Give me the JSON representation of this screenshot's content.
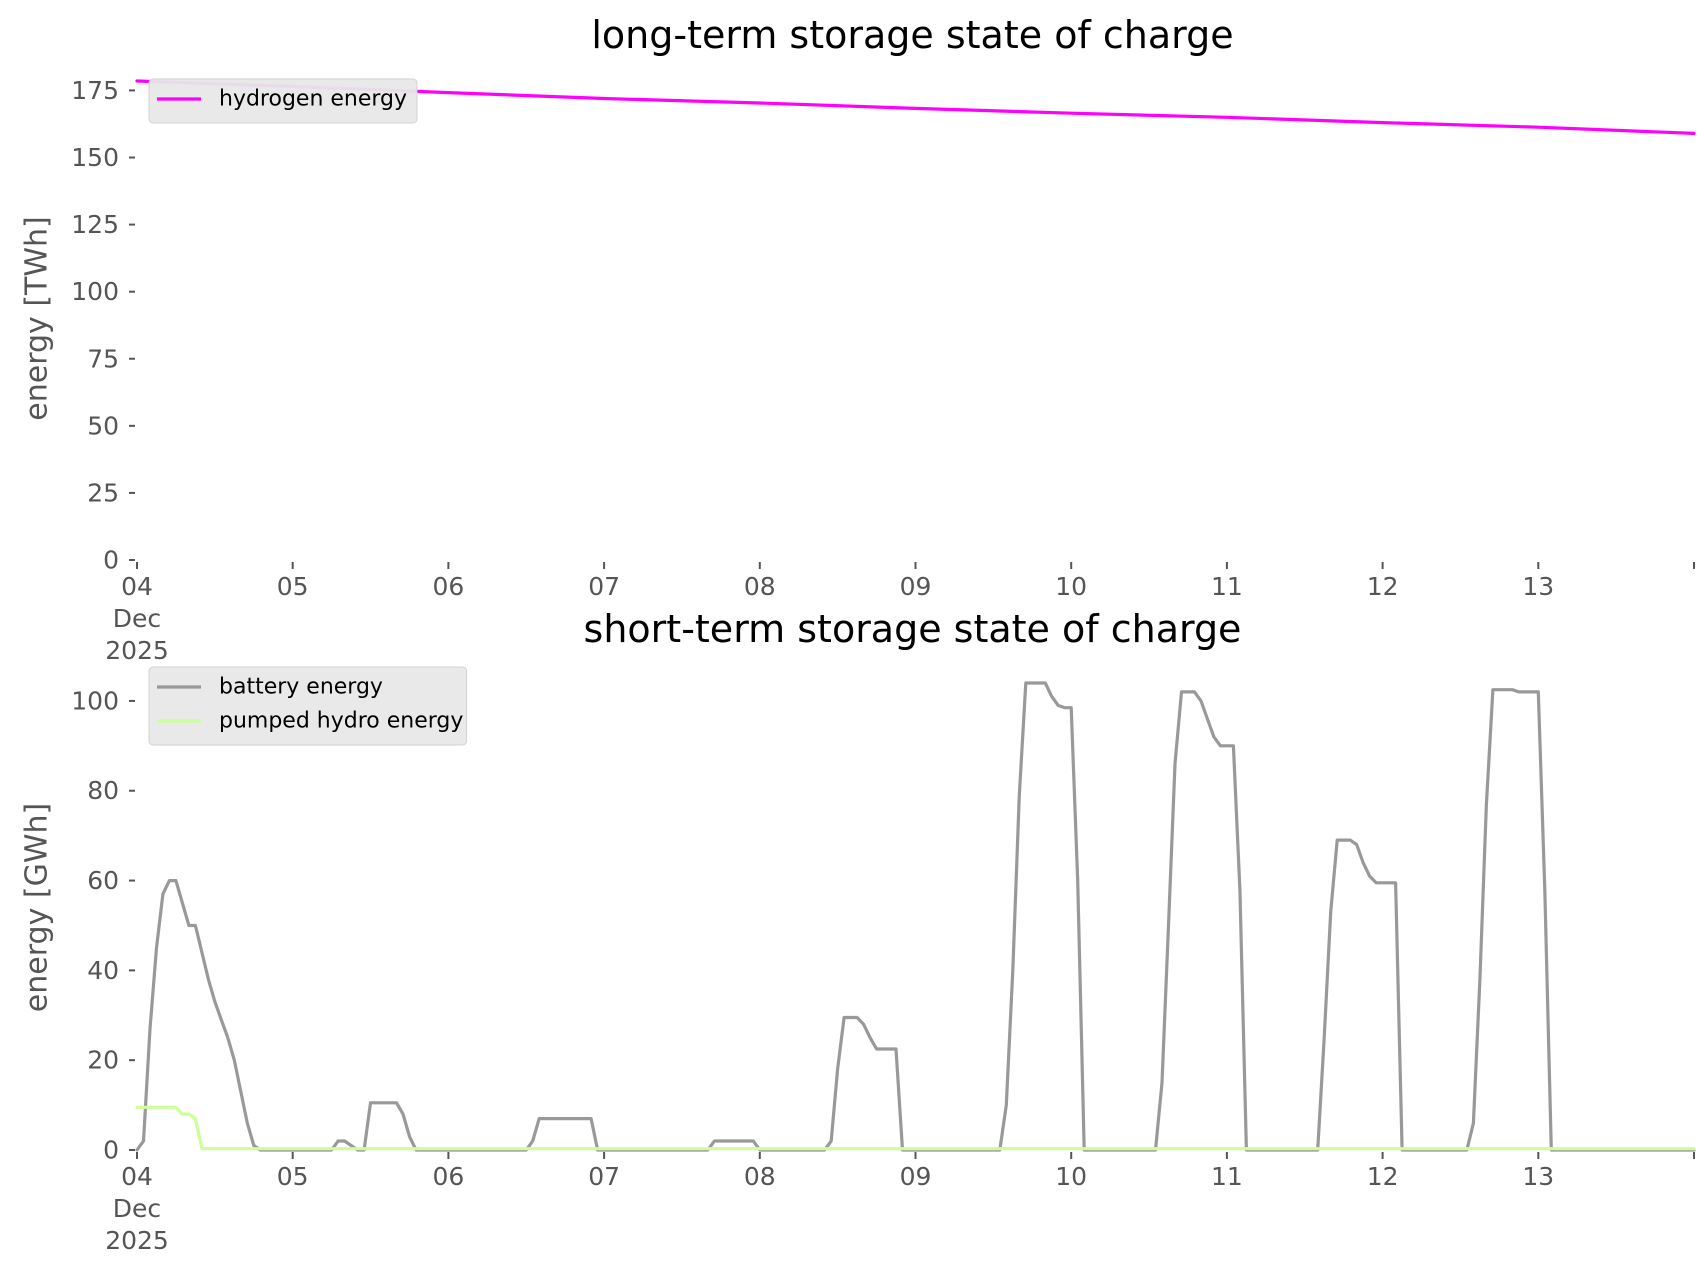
{
  "chart_data": [
    {
      "type": "line",
      "title": "long-term storage state of charge",
      "xlabel": "",
      "ylabel": "energy [TWh]",
      "ylim": [
        0,
        180
      ],
      "xlim": [
        "2025-12-04",
        "2025-12-14"
      ],
      "grid": false,
      "legend": "upper-left",
      "yticks": [
        "0",
        "25",
        "50",
        "75",
        "100",
        "125",
        "150",
        "175"
      ],
      "xticks": [
        {
          "date": "2025-12-04",
          "lines": [
            "04",
            "Dec",
            "2025"
          ]
        },
        {
          "date": "2025-12-05",
          "lines": [
            "05"
          ]
        },
        {
          "date": "2025-12-06",
          "lines": [
            "06"
          ]
        },
        {
          "date": "2025-12-07",
          "lines": [
            "07"
          ]
        },
        {
          "date": "2025-12-08",
          "lines": [
            "08"
          ]
        },
        {
          "date": "2025-12-09",
          "lines": [
            "09"
          ]
        },
        {
          "date": "2025-12-10",
          "lines": [
            "10"
          ]
        },
        {
          "date": "2025-12-11",
          "lines": [
            "11"
          ]
        },
        {
          "date": "2025-12-12",
          "lines": [
            "12"
          ]
        },
        {
          "date": "2025-12-13",
          "lines": [
            "13"
          ]
        }
      ],
      "series": [
        {
          "name": "hydrogen energy",
          "color": "#ff00ff",
          "points": [
            [
              "2025-12-04 00:00",
              178.5
            ],
            [
              "2025-12-05 00:00",
              176.5
            ],
            [
              "2025-12-06 00:00",
              174.2
            ],
            [
              "2025-12-07 00:00",
              172.0
            ],
            [
              "2025-12-08 00:00",
              170.3
            ],
            [
              "2025-12-09 00:00",
              168.3
            ],
            [
              "2025-12-10 00:00",
              166.5
            ],
            [
              "2025-12-11 00:00",
              165.0
            ],
            [
              "2025-12-12 00:00",
              163.0
            ],
            [
              "2025-12-13 00:00",
              161.3
            ],
            [
              "2025-12-14 00:00",
              159.0
            ]
          ]
        }
      ]
    },
    {
      "type": "line",
      "title": "short-term storage state of charge",
      "xlabel": "",
      "ylabel": "energy [GWh]",
      "ylim": [
        0,
        108
      ],
      "xlim": [
        "2025-12-04",
        "2025-12-14"
      ],
      "grid": false,
      "legend": "upper-left",
      "yticks": [
        "0",
        "20",
        "40",
        "60",
        "80",
        "100"
      ],
      "xticks": [
        {
          "date": "2025-12-04",
          "lines": [
            "04",
            "Dec",
            "2025"
          ]
        },
        {
          "date": "2025-12-05",
          "lines": [
            "05"
          ]
        },
        {
          "date": "2025-12-06",
          "lines": [
            "06"
          ]
        },
        {
          "date": "2025-12-07",
          "lines": [
            "07"
          ]
        },
        {
          "date": "2025-12-08",
          "lines": [
            "08"
          ]
        },
        {
          "date": "2025-12-09",
          "lines": [
            "09"
          ]
        },
        {
          "date": "2025-12-10",
          "lines": [
            "10"
          ]
        },
        {
          "date": "2025-12-11",
          "lines": [
            "11"
          ]
        },
        {
          "date": "2025-12-12",
          "lines": [
            "12"
          ]
        },
        {
          "date": "2025-12-13",
          "lines": [
            "13"
          ]
        }
      ],
      "series": [
        {
          "name": "battery energy",
          "color": "#999999",
          "points": [
            [
              "2025-12-04 00:00",
              0
            ],
            [
              "2025-12-04 01:00",
              2
            ],
            [
              "2025-12-04 02:00",
              27
            ],
            [
              "2025-12-04 03:00",
              45
            ],
            [
              "2025-12-04 04:00",
              57
            ],
            [
              "2025-12-04 05:00",
              60
            ],
            [
              "2025-12-04 06:00",
              60
            ],
            [
              "2025-12-04 07:00",
              55
            ],
            [
              "2025-12-04 08:00",
              50
            ],
            [
              "2025-12-04 09:00",
              50
            ],
            [
              "2025-12-04 10:00",
              44
            ],
            [
              "2025-12-04 11:00",
              38
            ],
            [
              "2025-12-04 12:00",
              33
            ],
            [
              "2025-12-04 13:00",
              29
            ],
            [
              "2025-12-04 14:00",
              25
            ],
            [
              "2025-12-04 15:00",
              20
            ],
            [
              "2025-12-04 16:00",
              13
            ],
            [
              "2025-12-04 17:00",
              6
            ],
            [
              "2025-12-04 18:00",
              1
            ],
            [
              "2025-12-04 19:00",
              0
            ],
            [
              "2025-12-05 06:00",
              0
            ],
            [
              "2025-12-05 07:00",
              2
            ],
            [
              "2025-12-05 08:00",
              2
            ],
            [
              "2025-12-05 09:00",
              1
            ],
            [
              "2025-12-05 10:00",
              0
            ],
            [
              "2025-12-05 11:00",
              0
            ],
            [
              "2025-12-05 12:00",
              10.5
            ],
            [
              "2025-12-05 16:00",
              10.5
            ],
            [
              "2025-12-05 17:00",
              8
            ],
            [
              "2025-12-05 18:00",
              3
            ],
            [
              "2025-12-05 19:00",
              0
            ],
            [
              "2025-12-06 12:00",
              0
            ],
            [
              "2025-12-06 13:00",
              2
            ],
            [
              "2025-12-06 14:00",
              7
            ],
            [
              "2025-12-06 22:00",
              7
            ],
            [
              "2025-12-06 23:00",
              0
            ],
            [
              "2025-12-07 16:00",
              0
            ],
            [
              "2025-12-07 17:00",
              2
            ],
            [
              "2025-12-07 23:00",
              2
            ],
            [
              "2025-12-08 00:00",
              0
            ],
            [
              "2025-12-08 10:00",
              0
            ],
            [
              "2025-12-08 11:00",
              2
            ],
            [
              "2025-12-08 12:00",
              18
            ],
            [
              "2025-12-08 13:00",
              29.5
            ],
            [
              "2025-12-08 15:00",
              29.5
            ],
            [
              "2025-12-08 16:00",
              28
            ],
            [
              "2025-12-08 17:00",
              25
            ],
            [
              "2025-12-08 18:00",
              22.5
            ],
            [
              "2025-12-08 21:00",
              22.5
            ],
            [
              "2025-12-08 22:00",
              0
            ],
            [
              "2025-12-09 13:00",
              0
            ],
            [
              "2025-12-09 14:00",
              10
            ],
            [
              "2025-12-09 15:00",
              40
            ],
            [
              "2025-12-09 16:00",
              79
            ],
            [
              "2025-12-09 17:00",
              104
            ],
            [
              "2025-12-09 20:00",
              104
            ],
            [
              "2025-12-09 21:00",
              101
            ],
            [
              "2025-12-09 22:00",
              99
            ],
            [
              "2025-12-09 23:00",
              98.5
            ],
            [
              "2025-12-10 00:00",
              98.5
            ],
            [
              "2025-12-10 01:00",
              60
            ],
            [
              "2025-12-10 02:00",
              0
            ],
            [
              "2025-12-10 13:00",
              0
            ],
            [
              "2025-12-10 14:00",
              15
            ],
            [
              "2025-12-10 15:00",
              50
            ],
            [
              "2025-12-10 16:00",
              86
            ],
            [
              "2025-12-10 17:00",
              102
            ],
            [
              "2025-12-10 19:00",
              102
            ],
            [
              "2025-12-10 20:00",
              100
            ],
            [
              "2025-12-10 21:00",
              96
            ],
            [
              "2025-12-10 22:00",
              92
            ],
            [
              "2025-12-10 23:00",
              90
            ],
            [
              "2025-12-11 01:00",
              90
            ],
            [
              "2025-12-11 02:00",
              58
            ],
            [
              "2025-12-11 03:00",
              0
            ],
            [
              "2025-12-11 14:00",
              0
            ],
            [
              "2025-12-11 15:00",
              25
            ],
            [
              "2025-12-11 16:00",
              53
            ],
            [
              "2025-12-11 17:00",
              69
            ],
            [
              "2025-12-11 19:00",
              69
            ],
            [
              "2025-12-11 20:00",
              68
            ],
            [
              "2025-12-11 21:00",
              64
            ],
            [
              "2025-12-11 22:00",
              61
            ],
            [
              "2025-12-11 23:00",
              59.5
            ],
            [
              "2025-12-12 02:00",
              59.5
            ],
            [
              "2025-12-12 03:00",
              0
            ],
            [
              "2025-12-12 13:00",
              0
            ],
            [
              "2025-12-12 14:00",
              6
            ],
            [
              "2025-12-12 15:00",
              38
            ],
            [
              "2025-12-12 16:00",
              77
            ],
            [
              "2025-12-12 17:00",
              102.5
            ],
            [
              "2025-12-12 20:00",
              102.5
            ],
            [
              "2025-12-12 21:00",
              102
            ],
            [
              "2025-12-12 23:00",
              102
            ],
            [
              "2025-12-13 00:00",
              102
            ],
            [
              "2025-12-13 01:00",
              58
            ],
            [
              "2025-12-13 02:00",
              0
            ],
            [
              "2025-12-14 00:00",
              0
            ]
          ]
        },
        {
          "name": "pumped hydro energy",
          "color": "#ccff99",
          "points": [
            [
              "2025-12-04 00:00",
              9.5
            ],
            [
              "2025-12-04 06:00",
              9.5
            ],
            [
              "2025-12-04 07:00",
              8
            ],
            [
              "2025-12-04 08:00",
              8
            ],
            [
              "2025-12-04 09:00",
              7
            ],
            [
              "2025-12-04 10:00",
              0.3
            ],
            [
              "2025-12-14 00:00",
              0.3
            ]
          ]
        }
      ]
    }
  ]
}
